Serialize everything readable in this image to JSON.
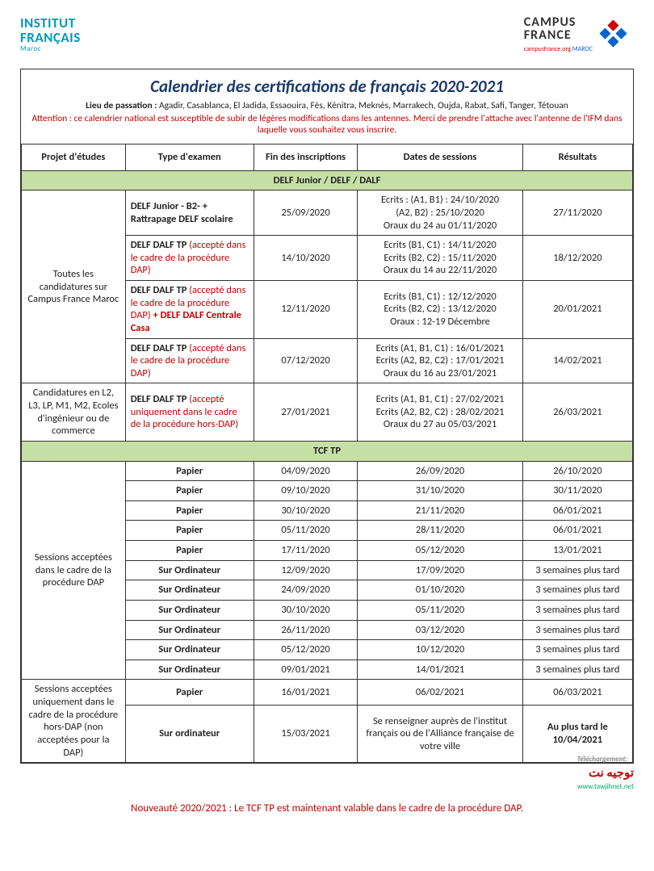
{
  "logos": {
    "left_line1": "INSTITUT",
    "left_line2": "FRANÇAIS",
    "left_sub": "Maroc",
    "right_top": "CAMPUS",
    "right_bot": "FRANCE",
    "right_url": "campusfrance.org",
    "right_tag": "MAROC"
  },
  "title": "Calendrier des certifications de français 2020-2021",
  "lieu_label": "Lieu de passation :",
  "lieu_text": " Agadir, Casablanca, El Jadida, Essaouira, Fès, Kénitra, Meknès, Marrakech, Oujda, Rabat, Safi, Tanger, Tétouan",
  "attention": "Attention : ce calendrier national est susceptible de subir de légères modifications dans les antennes. Merci de prendre l'attache avec l'antenne de l'IFM dans laquelle vous souhaitez vous inscrire.",
  "columns": [
    "Projet d'études",
    "Type d'examen",
    "Fin des inscriptions",
    "Dates de sessions",
    "Résultats"
  ],
  "section1": "DELF Junior / DELF / DALF",
  "delf": {
    "proj1": "Toutes les candidatures sur Campus France Maroc",
    "r1": {
      "type_bold": "DELF Junior - B2- + Rattrapage DELF scolaire",
      "fin": "25/09/2020",
      "sess": "Ecrits : (A1, B1) : 24/10/2020\n(A2, B2) : 25/10/2020\nOraux du 24 au 01/11/2020",
      "res": "27/11/2020"
    },
    "r2": {
      "type_bold": "DELF DALF TP ",
      "type_red": "(accepté dans le cadre de la procédure DAP)",
      "fin": "14/10/2020",
      "sess": "Ecrits (B1, C1) : 14/11/2020\nEcrits (B2, C2) : 15/11/2020\nOraux du 14 au 22/11/2020",
      "res": "18/12/2020"
    },
    "r3": {
      "type_bold": "DELF DALF TP ",
      "type_red": "(accepté dans le cadre de la procédure DAP)",
      "type_red2": " + DELF DALF Centrale Casa",
      "fin": "12/11/2020",
      "sess": "Ecrits (B1, C1) : 12/12/2020\nEcrits (B2, C2) : 13/12/2020\nOraux : 12-19 Décembre",
      "res": "20/01/2021"
    },
    "r4": {
      "type_bold": "DELF DALF TP ",
      "type_red": "(accepté dans le cadre de la procédure DAP)",
      "fin": "07/12/2020",
      "sess": "Ecrits (A1, B1, C1) : 16/01/2021\nEcrits (A2, B2, C2) : 17/01/2021\nOraux du 16 au 23/01/2021",
      "res": "14/02/2021"
    },
    "proj2": "Candidatures en L2, L3, LP, M1, M2, Ecoles d'ingénieur ou de commerce",
    "r5": {
      "type_bold": "DELF DALF TP ",
      "type_red": "(accepté uniquement dans le cadre de la procédure hors-DAP)",
      "fin": "27/01/2021",
      "sess": "Ecrits (A1, B1, C1) : 27/02/2021\nEcrits (A2, B2, C2) : 28/02/2021\nOraux du 27 au 05/03/2021",
      "res": "26/03/2021"
    }
  },
  "section2": "TCF TP",
  "tcf": {
    "proj1": "Sessions acceptées dans le cadre de la procédure DAP",
    "rows": [
      {
        "type": "Papier",
        "fin": "04/09/2020",
        "sess": "26/09/2020",
        "res": "26/10/2020"
      },
      {
        "type": "Papier",
        "fin": "09/10/2020",
        "sess": "31/10/2020",
        "res": "30/11/2020"
      },
      {
        "type": "Papier",
        "fin": "30/10/2020",
        "sess": "21/11/2020",
        "res": "06/01/2021"
      },
      {
        "type": "Papier",
        "fin": "05/11/2020",
        "sess": "28/11/2020",
        "res": "06/01/2021"
      },
      {
        "type": "Papier",
        "fin": "17/11/2020",
        "sess": "05/12/2020",
        "res": "13/01/2021"
      },
      {
        "type": "Sur Ordinateur",
        "fin": "12/09/2020",
        "sess": "17/09/2020",
        "res": "3 semaines plus tard"
      },
      {
        "type": "Sur Ordinateur",
        "fin": "24/09/2020",
        "sess": "01/10/2020",
        "res": "3 semaines plus tard"
      },
      {
        "type": "Sur Ordinateur",
        "fin": "30/10/2020",
        "sess": "05/11/2020",
        "res": "3 semaines plus tard"
      },
      {
        "type": "Sur Ordinateur",
        "fin": "26/11/2020",
        "sess": "03/12/2020",
        "res": "3 semaines plus tard"
      },
      {
        "type": "Sur Ordinateur",
        "fin": "05/12/2020",
        "sess": "10/12/2020",
        "res": "3 semaines plus tard"
      },
      {
        "type": "Sur Ordinateur",
        "fin": "09/01/2021",
        "sess": "14/01/2021",
        "res": "3 semaines plus tard"
      }
    ],
    "proj2": "Sessions acceptées uniquement dans le cadre de la procédure hors-DAP (non acceptées pour la DAP)",
    "r12": {
      "type": "Papier",
      "fin": "16/01/2021",
      "sess": "06/02/2021",
      "res": "06/03/2021"
    },
    "r13": {
      "type": "Sur ordinateur",
      "fin": "15/03/2021",
      "sess": "Se renseigner auprès de l'institut français ou de l'Alliance française de votre ville",
      "res": "Au plus tard le 10/04/2021"
    }
  },
  "telech": "Téléchargement:",
  "tawjih_ar": "توجيه نت",
  "tawjih_url": "www.tawjihnet.net",
  "footer": "Nouveauté 2020/2021 : Le TCF TP est maintenant valable dans le cadre de la procédure DAP."
}
